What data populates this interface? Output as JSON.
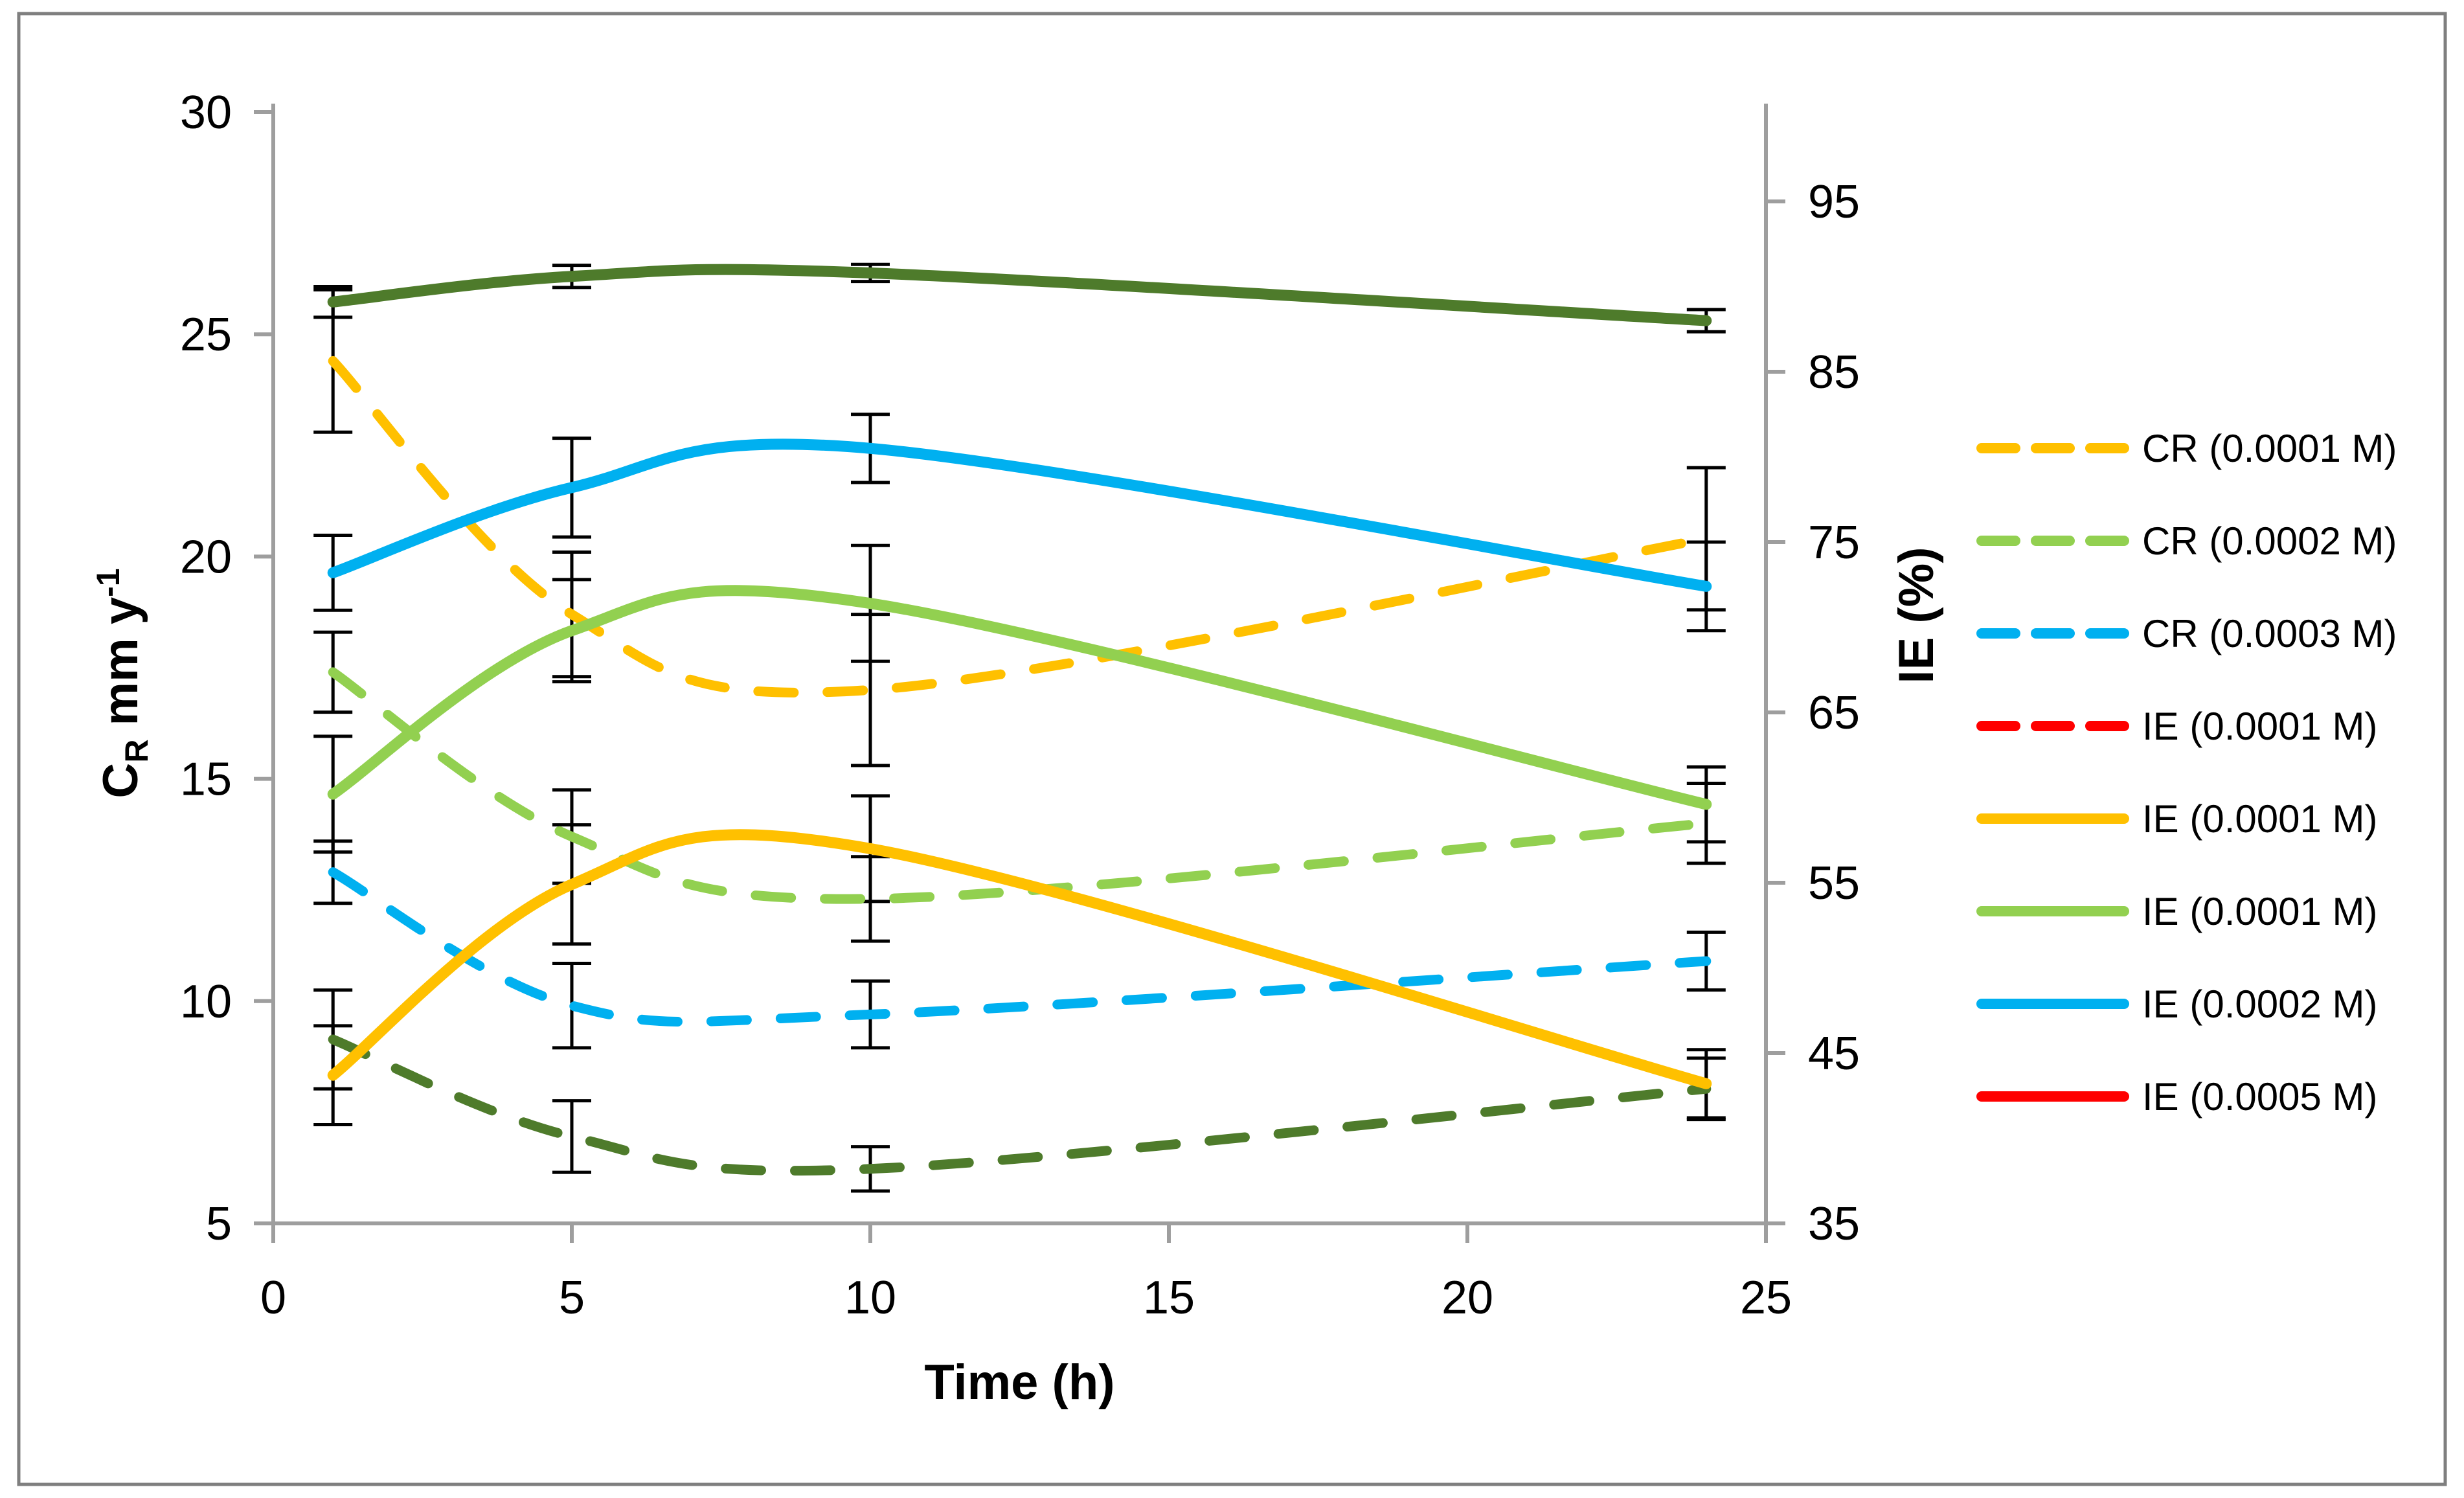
{
  "figure": {
    "border_color": "#7F7F7F",
    "background": "#FFFFFF"
  },
  "chart_data": {
    "type": "line",
    "title": "",
    "xlabel": "Time (h)",
    "ylabel_left": "CR mm y-1",
    "ylabel_left_parts": {
      "base": "C",
      "sub": "R",
      "rest": " mm y",
      "sup": "-1"
    },
    "ylabel_right": "IE (%)",
    "x_ticks": [
      0,
      5,
      10,
      15,
      20,
      25
    ],
    "xlim": [
      0,
      25
    ],
    "y_left_ticks": [
      30,
      25,
      20,
      15,
      10,
      5
    ],
    "ylim_left": [
      5,
      30
    ],
    "y_right_ticks": [
      95,
      85,
      75,
      65,
      55,
      45,
      35
    ],
    "ylim_right": [
      35,
      95
    ],
    "grid": "off",
    "legend_position": "right",
    "x": [
      1,
      5,
      10,
      24
    ],
    "series": [
      {
        "name": "CR (0.0001 M)",
        "axis": "left",
        "style": "dashed",
        "plot_color": "#FFC000",
        "legend_color": "#FFC000",
        "values": [
          24.4,
          18.7,
          17.0,
          20.4
        ],
        "errors": [
          1.6,
          1.4,
          1.7,
          1.6
        ]
      },
      {
        "name": "CR (0.0002 M)",
        "axis": "left",
        "style": "dashed",
        "plot_color": "#92D050",
        "legend_color": "#92D050",
        "values": [
          17.4,
          13.7,
          12.3,
          14.0
        ],
        "errors": [
          0.9,
          1.05,
          0.95,
          0.9
        ]
      },
      {
        "name": "CR (0.0003 M)",
        "axis": "left",
        "style": "dashed",
        "plot_color": "#00B0F0",
        "legend_color": "#00B0F0",
        "values": [
          12.9,
          9.9,
          9.7,
          10.9
        ],
        "errors": [
          0.7,
          0.95,
          0.75,
          0.65
        ]
      },
      {
        "name": "IE (0.0001 M)",
        "axis": "right",
        "style": "dashed",
        "plot_color": "#4E7B2B",
        "legend_color": "#FF0000",
        "values": [
          45.8,
          40.1,
          38.2,
          42.9
        ],
        "errors": [
          2.9,
          2.1,
          1.3,
          1.8
        ]
      },
      {
        "name": "IE (0.0001 M)",
        "axis": "right",
        "style": "solid",
        "plot_color": "#FFC000",
        "legend_color": "#FFC000",
        "values": [
          43.7,
          54.9,
          57.0,
          43.2
        ],
        "errors": [
          2.9,
          3.5,
          3.1,
          2.0
        ]
      },
      {
        "name": "IE (0.0001 M)",
        "axis": "right",
        "style": "solid",
        "plot_color": "#92D050",
        "legend_color": "#92D050",
        "values": [
          60.2,
          69.8,
          71.4,
          59.6
        ],
        "errors": [
          3.4,
          3.0,
          3.4,
          2.2
        ]
      },
      {
        "name": "IE (0.0002 M)",
        "axis": "right",
        "style": "solid",
        "plot_color": "#00B0F0",
        "legend_color": "#00B0F0",
        "values": [
          73.2,
          78.2,
          80.5,
          72.4
        ],
        "errors": [
          2.2,
          2.9,
          2.0,
          2.6
        ]
      },
      {
        "name": "IE (0.0005 M)",
        "axis": "right",
        "style": "solid",
        "plot_color": "#4E7B2B",
        "legend_color": "#FF0000",
        "values": [
          89.1,
          90.6,
          90.8,
          88.0
        ],
        "errors": [
          0.9,
          0.65,
          0.5,
          0.65
        ]
      }
    ],
    "colors": {
      "axis_line": "#9E9E9E",
      "error_bar": "#000000",
      "text": "#000000",
      "gold": "#FFC000",
      "light_green": "#92D050",
      "cyan": "#00B0F0",
      "red": "#FF0000",
      "dark_green": "#4E7B2B"
    }
  }
}
